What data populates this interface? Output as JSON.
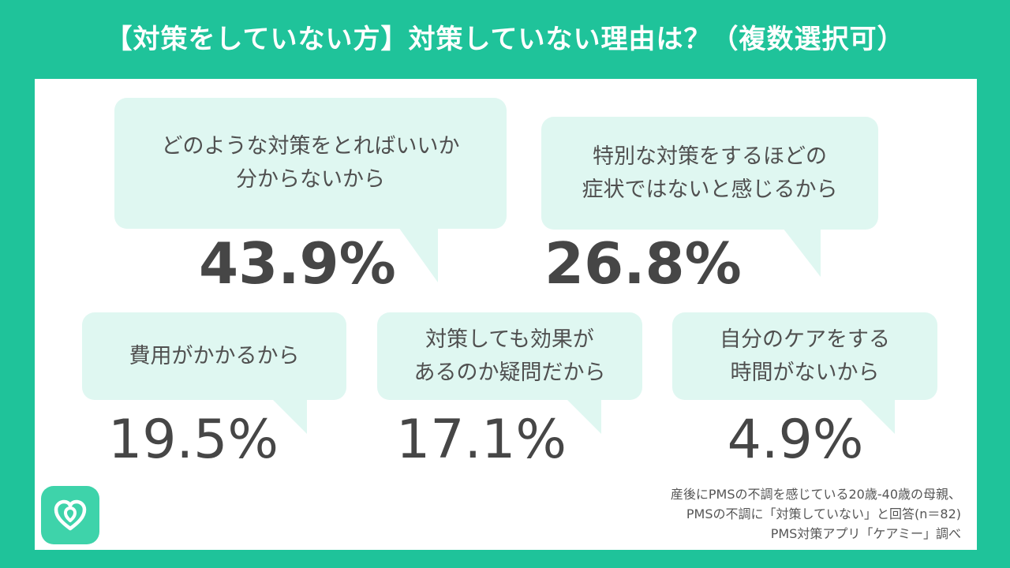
{
  "title": "【対策をしていない方】対策していない理由は？（複数選択可）",
  "colors": {
    "background": "#1fc39a",
    "panel": "#ffffff",
    "bubble": "#dff7f1",
    "text": "#464646"
  },
  "logo_icon": "heart-shape-icon",
  "chart_data": {
    "type": "bar",
    "categories": [
      "どのような対策をとればいいか分からないから",
      "特別な対策をするほどの症状ではないと感じるから",
      "費用がかかるから",
      "対策しても効果があるのか疑問だから",
      "自分のケアをする時間がないから"
    ],
    "values": [
      43.9,
      26.8,
      19.5,
      17.1,
      4.9
    ],
    "unit": "%"
  },
  "items": [
    {
      "label": "どのような対策をとればいいか\n分からないから",
      "value_text": "43.9%"
    },
    {
      "label": "特別な対策をするほどの\n症状ではないと感じるから",
      "value_text": "26.8%"
    },
    {
      "label": "費用がかかるから",
      "value_text": "19.5%"
    },
    {
      "label": "対策しても効果が\nあるのか疑問だから",
      "value_text": "17.1%"
    },
    {
      "label": "自分のケアをする\n時間がないから",
      "value_text": "4.9%"
    }
  ],
  "source": {
    "line1": "産後にPMSの不調を感じている20歳-40歳の母親、",
    "line2": "PMSの不調に「対策していない」と回答(n＝82)",
    "line3": "PMS対策アプリ「ケアミー」調べ"
  }
}
